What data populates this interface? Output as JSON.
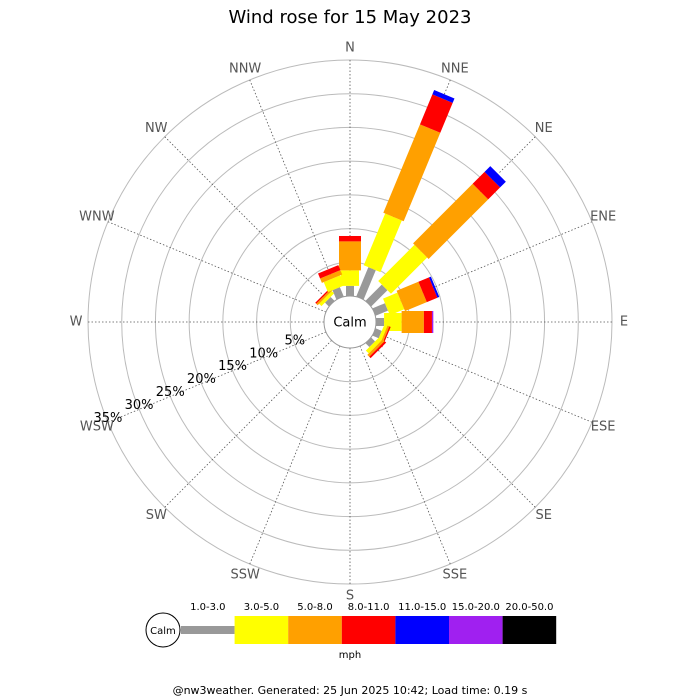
{
  "chart_data": {
    "type": "wind_rose",
    "title": "Wind rose for 15 May 2023",
    "directions": [
      "N",
      "NNE",
      "NE",
      "ENE",
      "E",
      "ESE",
      "SE",
      "SSE",
      "S",
      "SSW",
      "SW",
      "WSW",
      "W",
      "WNW",
      "NW",
      "NNW"
    ],
    "rlim": [
      0,
      35
    ],
    "rticks": [
      {
        "value": 5,
        "label": "5%"
      },
      {
        "value": 10,
        "label": "10%"
      },
      {
        "value": 15,
        "label": "15%"
      },
      {
        "value": 20,
        "label": "20%"
      },
      {
        "value": 25,
        "label": "25%"
      },
      {
        "value": 30,
        "label": "30%"
      },
      {
        "value": 35,
        "label": "35%"
      }
    ],
    "calm_label": "Calm",
    "units": "mph",
    "series": [
      {
        "name": "1.0-3.0",
        "color": "#999999",
        "values": [
          1.5,
          4.7,
          3.4,
          2,
          1.2,
          1,
          0.8,
          0,
          0,
          0,
          0,
          0,
          0,
          0,
          0.8,
          1.5
        ]
      },
      {
        "name": "3.0-5.0",
        "color": "#ffff00",
        "values": [
          2.3,
          8.3,
          7.6,
          2.3,
          2.6,
          0.5,
          0.6,
          0,
          0,
          0,
          0,
          0,
          0,
          0,
          0.5,
          1.6
        ]
      },
      {
        "name": "5.0-8.0",
        "color": "#ffa000",
        "values": [
          4.3,
          14.2,
          12.5,
          3.5,
          3.3,
          0.3,
          0.4,
          0,
          0,
          0,
          0,
          0,
          0,
          0,
          0.3,
          0.7
        ]
      },
      {
        "name": "8.0-11.0",
        "color": "#ff0000",
        "values": [
          0.8,
          4.8,
          2.5,
          1.7,
          1.2,
          0.2,
          0.3,
          0,
          0,
          0,
          0,
          0,
          0,
          0,
          0.2,
          0.8
        ]
      },
      {
        "name": "11.0-15.0",
        "color": "#0000ff",
        "values": [
          0,
          0.7,
          1.2,
          0.3,
          0,
          0,
          0,
          0,
          0,
          0,
          0,
          0,
          0,
          0,
          0,
          0
        ]
      },
      {
        "name": "15.0-20.0",
        "color": "#a020f0",
        "values": [
          0,
          0,
          0,
          0,
          0.2,
          0,
          0,
          0,
          0,
          0,
          0,
          0,
          0,
          0,
          0,
          0
        ]
      },
      {
        "name": "20.0-50.0",
        "color": "#000000",
        "values": [
          0,
          0,
          0,
          0,
          0,
          0,
          0,
          0,
          0,
          0,
          0,
          0,
          0,
          0,
          0,
          0
        ]
      }
    ],
    "footer": "@nw3weather. Generated: 25 Jun 2025 10:42; Load time: 0.19 s"
  }
}
